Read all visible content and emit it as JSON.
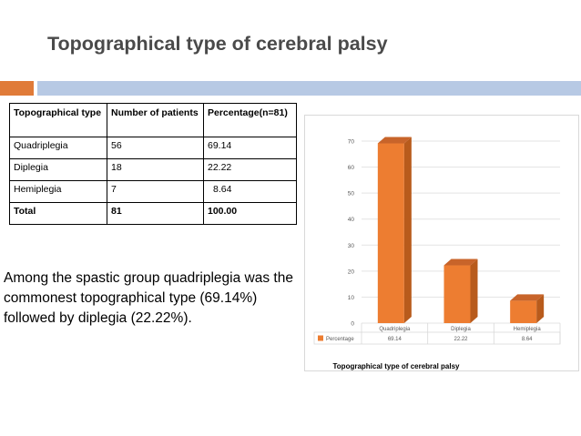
{
  "slide": {
    "title": "Topographical type of cerebral palsy",
    "note": "Among the spastic group quadriplegia was the commonest topographical type (69.14%) followed by diplegia (22.22%)."
  },
  "table": {
    "headers": [
      "Topographical type",
      "Number of patients",
      "Percentage(n=81)"
    ],
    "rows": [
      [
        "Quadriplegia",
        "56",
        "69.14"
      ],
      [
        "Diplegia",
        "18",
        "22.22"
      ],
      [
        "Hemiplegia",
        "7",
        "8.64"
      ]
    ],
    "total": [
      "Total",
      "81",
      "100.00"
    ]
  },
  "colors": {
    "accent_orange": "#e07b39",
    "accent_blue": "#b7c9e4",
    "bar_front": "#ed7d31",
    "bar_side": "#b85b1c",
    "bar_top": "#c8642a"
  },
  "chart_data": {
    "type": "bar",
    "categories": [
      "Quadriplegia",
      "Diplegia",
      "Hemiplegia"
    ],
    "series": [
      {
        "name": "Percentage",
        "values": [
          69.14,
          22.22,
          8.64
        ]
      }
    ],
    "value_labels": [
      "69.14",
      "22.22",
      "8.64"
    ],
    "yticks": [
      "0",
      "10",
      "20",
      "30",
      "40",
      "50",
      "60",
      "70"
    ],
    "ylim": [
      0,
      70
    ],
    "title": "Topographical type of cerebral palsy",
    "grid": true,
    "legend": "data-table-below"
  }
}
